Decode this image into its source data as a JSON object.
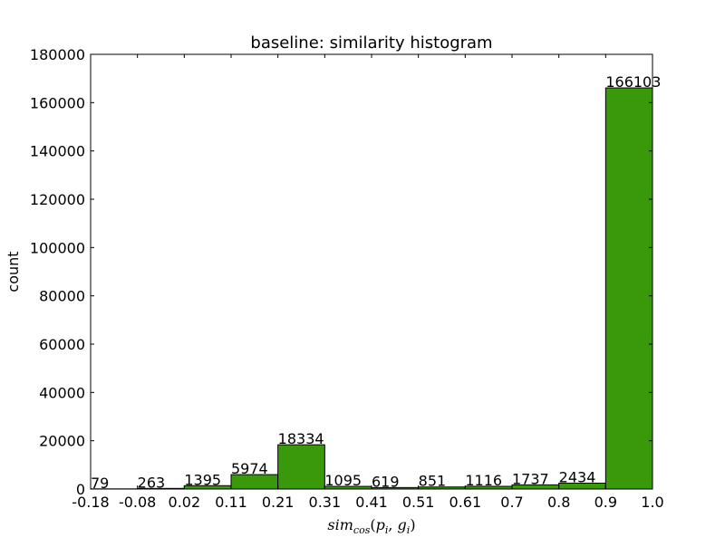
{
  "chart_data": {
    "type": "bar",
    "title": "baseline: similarity histogram",
    "xlabel": "sim_cos(p_i, g_i)",
    "xlabel_parts": {
      "base": "sim",
      "base_sub": "cos",
      "open": "(",
      "p": "p",
      "p_sub": "i",
      "comma": ", ",
      "g": "g",
      "g_sub": "i",
      "close": ")"
    },
    "ylabel": "count",
    "ylim": [
      0,
      180000
    ],
    "yticks": [
      0,
      20000,
      40000,
      60000,
      80000,
      100000,
      120000,
      140000,
      160000,
      180000
    ],
    "ytick_labels": [
      "0",
      "20000",
      "40000",
      "60000",
      "80000",
      "100000",
      "120000",
      "140000",
      "160000",
      "180000"
    ],
    "bin_edges": [
      -0.18,
      -0.08,
      0.02,
      0.11,
      0.21,
      0.31,
      0.41,
      0.51,
      0.61,
      0.7,
      0.8,
      0.9,
      1.0
    ],
    "xtick_labels": [
      "-0.18",
      "-0.08",
      "0.02",
      "0.11",
      "0.21",
      "0.31",
      "0.41",
      "0.51",
      "0.61",
      "0.7",
      "0.8",
      "0.9",
      "1.0"
    ],
    "values": [
      79,
      263,
      1395,
      5974,
      18334,
      1095,
      619,
      851,
      1116,
      1737,
      2434,
      166103
    ],
    "value_labels": [
      "79",
      "263",
      "1395",
      "5974",
      "18334",
      "1095",
      "619",
      "851",
      "1116",
      "1737",
      "2434",
      "166103"
    ],
    "bar_color": "#3a990b",
    "edge_color": "#000000",
    "grid": false,
    "legend": "none"
  }
}
